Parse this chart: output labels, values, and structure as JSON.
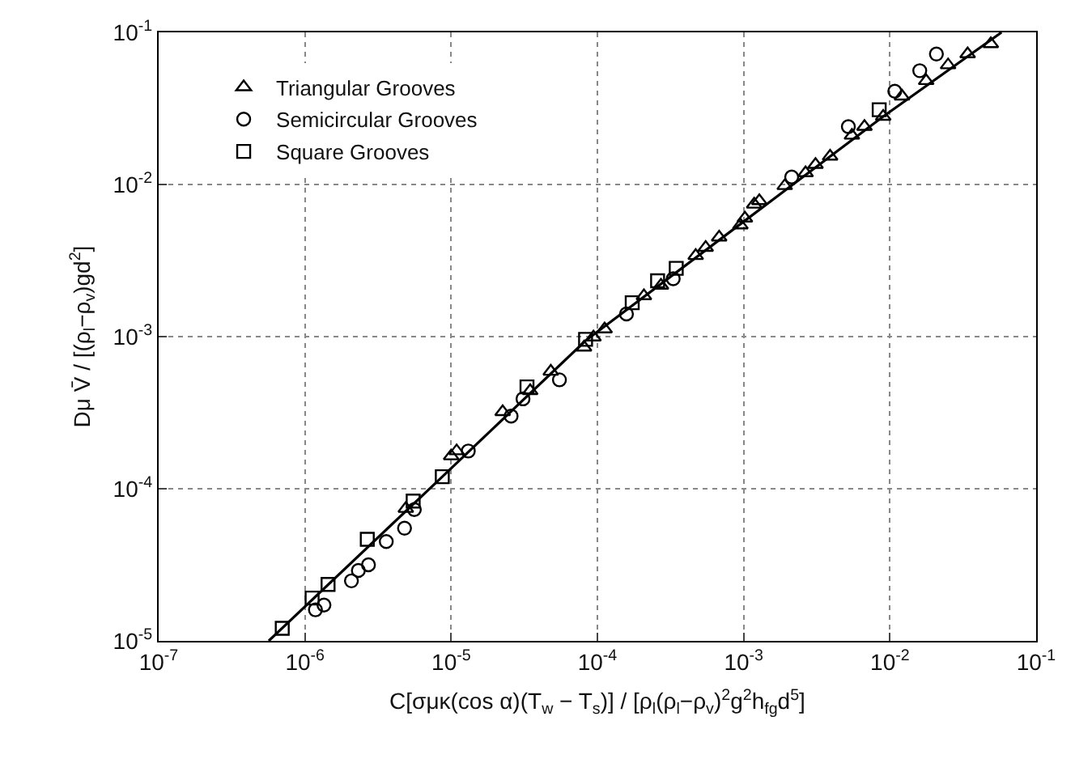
{
  "chart_data": {
    "type": "scatter",
    "xlabel": "C[σμκ(cos α)(T$_{w}$ − T$_{s}$)] / [ρ$_{l}$(ρ$_{l}$−ρ$_{v}$)$^{2}$g$^{2}$h$_{fg}$d$^{5}$]",
    "ylabel": "Dμ V̄ / [(ρ$_{l}$−ρ$_{v}$)gd$^{2}$]",
    "log": "xy",
    "grid": true,
    "legend": "top left",
    "xlim": [
      1e-07,
      0.1
    ],
    "ylim": [
      1e-05,
      0.1
    ],
    "xticks": [
      {
        "value": 1e-07,
        "label": "10$^{-7}$"
      },
      {
        "value": 1e-06,
        "label": "10$^{-6}$"
      },
      {
        "value": 1e-05,
        "label": "10$^{-5}$"
      },
      {
        "value": 0.0001,
        "label": "10$^{-4}$"
      },
      {
        "value": 0.001,
        "label": "10$^{-3}$"
      },
      {
        "value": 0.01,
        "label": "10$^{-2}$"
      },
      {
        "value": 0.1,
        "label": "10$^{-1}$"
      }
    ],
    "yticks": [
      {
        "value": 1e-05,
        "label": "10$^{-5}$"
      },
      {
        "value": 0.0001,
        "label": "10$^{-4}$"
      },
      {
        "value": 0.001,
        "label": "10$^{-3}$"
      },
      {
        "value": 0.01,
        "label": "10$^{-2}$"
      },
      {
        "value": 0.1,
        "label": "10$^{-1}$"
      }
    ],
    "series": [
      {
        "name": "Triangular Grooves",
        "color": "#000000",
        "marker": "triangle",
        "x": [
          4.9e-06,
          1e-05,
          1.09e-05,
          2.25e-05,
          3.47e-05,
          4.8e-05,
          8.1e-05,
          9.4e-05,
          0.000112,
          0.000208,
          0.000272,
          0.00047,
          0.00055,
          0.00068,
          0.00095,
          0.00102,
          0.00118,
          0.00128,
          0.00191,
          0.00265,
          0.0031,
          0.0039,
          0.0055,
          0.0067,
          0.009,
          0.0121,
          0.0177,
          0.025,
          0.034,
          0.049
        ],
        "values": [
          7.4e-05,
          0.000164,
          0.000177,
          0.00032,
          0.00044,
          0.00059,
          0.00085,
          0.00099,
          0.00112,
          0.00185,
          0.00217,
          0.0034,
          0.00385,
          0.0045,
          0.0054,
          0.006,
          0.0074,
          0.0078,
          0.0098,
          0.0119,
          0.0135,
          0.0153,
          0.021,
          0.024,
          0.028,
          0.038,
          0.048,
          0.061,
          0.072,
          0.084
        ]
      },
      {
        "name": "Semicircular Grooves",
        "color": "#000000",
        "marker": "circle",
        "x": [
          1.18e-06,
          1.35e-06,
          2.08e-06,
          2.32e-06,
          2.72e-06,
          3.6e-06,
          4.8e-06,
          5.6e-06,
          1.31e-05,
          2.57e-05,
          3.1e-05,
          5.5e-05,
          0.000158,
          0.00033,
          0.00213,
          0.0052,
          0.0108,
          0.016,
          0.0208
        ],
        "values": [
          1.6e-05,
          1.72e-05,
          2.48e-05,
          2.9e-05,
          3.16e-05,
          4.5e-05,
          5.5e-05,
          7.3e-05,
          0.000177,
          0.0003,
          0.00039,
          0.00052,
          0.00141,
          0.0024,
          0.0112,
          0.024,
          0.041,
          0.056,
          0.072
        ]
      },
      {
        "name": "Square Grooves",
        "color": "#000000",
        "marker": "square",
        "x": [
          7e-07,
          1.12e-06,
          1.44e-06,
          2.67e-06,
          5.5e-06,
          8.7e-06,
          3.3e-05,
          8.3e-05,
          0.000173,
          0.000258,
          0.000346,
          0.00845
        ],
        "values": [
          1.21e-05,
          1.91e-05,
          2.35e-05,
          4.65e-05,
          8.3e-05,
          0.00012,
          0.000467,
          0.00096,
          0.00167,
          0.00233,
          0.00281,
          0.031
        ]
      },
      {
        "type": "line",
        "color": "#000000",
        "marker": "none",
        "line_style": "solid",
        "x": [
          5.66e-07,
          8.7e-06,
          8.3e-05,
          0.001,
          0.009,
          0.058
        ],
        "values": [
          1e-05,
          0.00012,
          0.00094,
          0.0057,
          0.028,
          0.1
        ]
      }
    ]
  }
}
